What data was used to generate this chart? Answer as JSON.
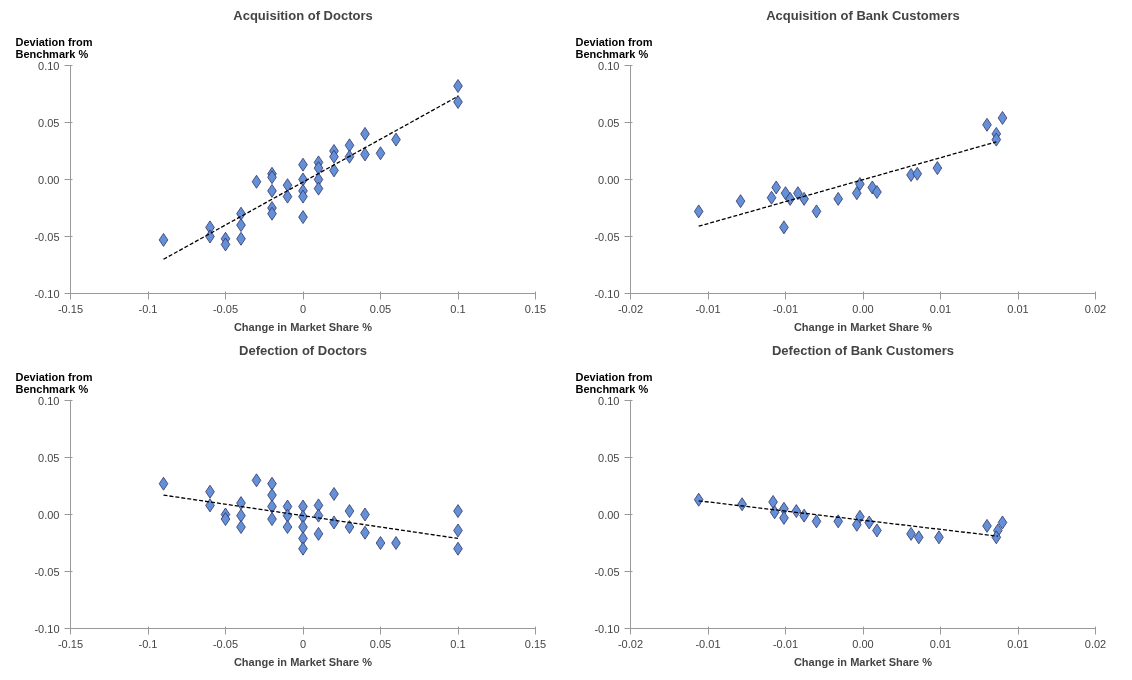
{
  "chart_data": [
    {
      "type": "scatter",
      "title": "Acquisition of Doctors",
      "xlabel": "Change in Market Share %",
      "ylabel": "Deviation from Benchmark %",
      "marker": "diamond",
      "grid": false,
      "xlim": [
        -0.15,
        0.15
      ],
      "xticks": [
        -0.15,
        -0.1,
        -0.05,
        0,
        0.05,
        0.1,
        0.15
      ],
      "ylim": [
        -0.1,
        0.1
      ],
      "yticks": [
        {
          "value": -0.1,
          "label": "-0.10"
        },
        {
          "value": -0.05,
          "label": "-0.05"
        },
        {
          "value": 0,
          "label": "0.00"
        },
        {
          "value": 0.05,
          "label": "0.05"
        },
        {
          "value": 0.1,
          "label": "0.10"
        }
      ],
      "series": [
        {
          "color": "#6490d8",
          "x": [
            -0.09,
            -0.06,
            -0.06,
            -0.05,
            -0.05,
            -0.04,
            -0.04,
            -0.04,
            -0.03,
            -0.02,
            -0.02,
            -0.02,
            -0.02,
            -0.02,
            -0.01,
            -0.01,
            0,
            0,
            0,
            0,
            0,
            0.01,
            0.01,
            0.01,
            0.01,
            0.02,
            0.02,
            0.02,
            0.03,
            0.03,
            0.04,
            0.04,
            0.05,
            0.06,
            0.1,
            0.1
          ],
          "values": [
            -0.053,
            -0.042,
            -0.05,
            -0.052,
            -0.057,
            -0.03,
            -0.04,
            -0.052,
            -0.002,
            0.005,
            0.002,
            -0.01,
            -0.025,
            -0.03,
            -0.005,
            -0.015,
            0.013,
            0.0,
            -0.01,
            -0.015,
            -0.033,
            0.015,
            0.01,
            0.0,
            -0.008,
            0.025,
            0.02,
            0.008,
            0.03,
            0.02,
            0.04,
            0.022,
            0.023,
            0.035,
            0.082,
            0.068
          ]
        },
        {
          "type": "line",
          "marker": "none",
          "color": "#000000",
          "line_style": "dashed",
          "x": [
            -0.09,
            0.1
          ],
          "values": [
            -0.07,
            0.073
          ]
        }
      ]
    },
    {
      "type": "scatter",
      "title": "Acquisition of Bank Customers",
      "xlabel": "Change in Market Share %",
      "ylabel": "Deviation from Benchmark %",
      "marker": "diamond",
      "grid": false,
      "xlim": [
        -0.015,
        0.015
      ],
      "xticks": [
        {
          "value": -0.015,
          "label": "-0.02"
        },
        {
          "value": -0.01,
          "label": "-0.01"
        },
        {
          "value": -0.005,
          "label": "-0.01"
        },
        {
          "value": 0,
          "label": "0.00"
        },
        {
          "value": 0.005,
          "label": "0.01"
        },
        {
          "value": 0.01,
          "label": "0.01"
        },
        {
          "value": 0.015,
          "label": "0.02"
        }
      ],
      "ylim": [
        -0.1,
        0.1
      ],
      "yticks": [
        {
          "value": -0.1,
          "label": "-0.10"
        },
        {
          "value": -0.05,
          "label": "-0.05"
        },
        {
          "value": 0,
          "label": "0.00"
        },
        {
          "value": 0.05,
          "label": "0.05"
        },
        {
          "value": 0.1,
          "label": "0.10"
        }
      ],
      "series": [
        {
          "color": "#6490d8",
          "x": [
            -0.0106,
            -0.0079,
            -0.0056,
            -0.0059,
            -0.005,
            -0.0047,
            -0.0051,
            -0.0042,
            -0.0038,
            -0.003,
            -0.0016,
            -0.0004,
            -0.0002,
            0.0006,
            0.0009,
            0.0031,
            0.0035,
            0.0048,
            0.008,
            0.009,
            0.0086,
            0.0086
          ],
          "values": [
            -0.028,
            -0.019,
            -0.007,
            -0.016,
            -0.012,
            -0.017,
            -0.042,
            -0.012,
            -0.017,
            -0.028,
            -0.017,
            -0.012,
            -0.004,
            -0.007,
            -0.011,
            0.004,
            0.005,
            0.01,
            0.048,
            0.054,
            0.04,
            0.035
          ]
        },
        {
          "type": "line",
          "marker": "none",
          "color": "#000000",
          "line_style": "dashed",
          "x": [
            -0.0106,
            0.0086
          ],
          "values": [
            -0.041,
            0.033
          ]
        }
      ]
    },
    {
      "type": "scatter",
      "title": "Defection of Doctors",
      "xlabel": "Change in Market Share %",
      "ylabel": "Deviation from Benchmark %",
      "marker": "diamond",
      "grid": false,
      "xlim": [
        -0.15,
        0.15
      ],
      "xticks": [
        -0.15,
        -0.1,
        -0.05,
        0,
        0.05,
        0.1,
        0.15
      ],
      "ylim": [
        -0.1,
        0.1
      ],
      "yticks": [
        {
          "value": -0.1,
          "label": "-0.10"
        },
        {
          "value": -0.05,
          "label": "-0.05"
        },
        {
          "value": 0,
          "label": "0.00"
        },
        {
          "value": 0.05,
          "label": "0.05"
        },
        {
          "value": 0.1,
          "label": "0.10"
        }
      ],
      "series": [
        {
          "color": "#6490d8",
          "x": [
            -0.09,
            -0.06,
            -0.06,
            -0.05,
            -0.05,
            -0.04,
            -0.04,
            -0.04,
            -0.03,
            -0.02,
            -0.02,
            -0.02,
            -0.02,
            -0.01,
            -0.01,
            -0.01,
            0,
            0,
            0,
            0,
            0,
            0.01,
            0.01,
            0.01,
            0.02,
            0.02,
            0.03,
            0.03,
            0.04,
            0.04,
            0.05,
            0.06,
            0.1,
            0.1,
            0.1
          ],
          "values": [
            0.027,
            0.02,
            0.008,
            0.0,
            -0.004,
            0.01,
            -0.001,
            -0.011,
            0.03,
            0.027,
            0.017,
            0.007,
            -0.004,
            0.007,
            -0.001,
            -0.011,
            0.007,
            -0.002,
            -0.011,
            -0.021,
            -0.03,
            0.008,
            -0.001,
            -0.017,
            0.018,
            -0.007,
            0.003,
            -0.011,
            0.0,
            -0.016,
            -0.025,
            -0.025,
            0.003,
            -0.014,
            -0.03
          ]
        },
        {
          "type": "line",
          "marker": "none",
          "color": "#000000",
          "line_style": "dashed",
          "x": [
            -0.09,
            0.1
          ],
          "values": [
            0.017,
            -0.021
          ]
        }
      ]
    },
    {
      "type": "scatter",
      "title": "Defection of Bank Customers",
      "xlabel": "Change in Market Share %",
      "ylabel": "Deviation from Benchmark %",
      "marker": "diamond",
      "grid": false,
      "xlim": [
        -0.015,
        0.015
      ],
      "xticks": [
        {
          "value": -0.015,
          "label": "-0.02"
        },
        {
          "value": -0.01,
          "label": "-0.01"
        },
        {
          "value": -0.005,
          "label": "-0.01"
        },
        {
          "value": 0,
          "label": "0.00"
        },
        {
          "value": 0.005,
          "label": "0.01"
        },
        {
          "value": 0.01,
          "label": "0.01"
        },
        {
          "value": 0.015,
          "label": "0.02"
        }
      ],
      "ylim": [
        -0.1,
        0.1
      ],
      "yticks": [
        {
          "value": -0.1,
          "label": "-0.10"
        },
        {
          "value": -0.05,
          "label": "-0.05"
        },
        {
          "value": 0,
          "label": "0.00"
        },
        {
          "value": 0.05,
          "label": "0.05"
        },
        {
          "value": 0.1,
          "label": "0.10"
        }
      ],
      "series": [
        {
          "color": "#6490d8",
          "x": [
            -0.0106,
            -0.0078,
            -0.0058,
            -0.0057,
            -0.0051,
            -0.0051,
            -0.0043,
            -0.0038,
            -0.003,
            -0.0016,
            -0.0002,
            -0.0004,
            0.0004,
            0.0009,
            0.0031,
            0.0036,
            0.0049,
            0.008,
            0.009,
            0.0087,
            0.0086
          ],
          "values": [
            0.013,
            0.009,
            0.011,
            0.002,
            0.005,
            -0.003,
            0.003,
            -0.001,
            -0.006,
            -0.006,
            -0.002,
            -0.009,
            -0.007,
            -0.014,
            -0.017,
            -0.02,
            -0.02,
            -0.01,
            -0.007,
            -0.014,
            -0.02
          ]
        },
        {
          "type": "line",
          "marker": "none",
          "color": "#000000",
          "line_style": "dashed",
          "x": [
            -0.0106,
            0.0087
          ],
          "values": [
            0.012,
            -0.019
          ]
        }
      ]
    }
  ]
}
